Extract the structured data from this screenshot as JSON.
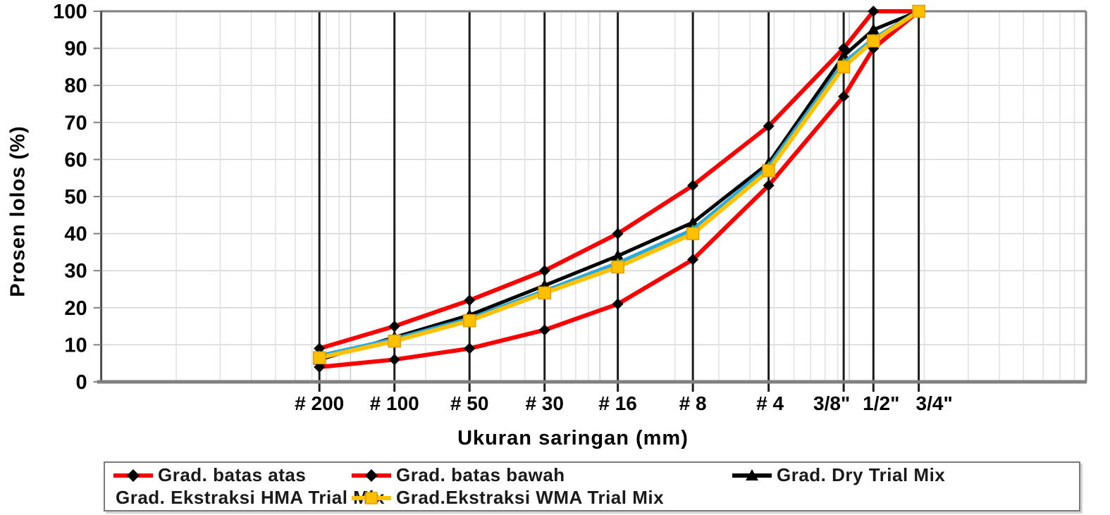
{
  "chart_data": {
    "type": "line",
    "title": "",
    "xlabel": "Ukuran saringan (mm)",
    "ylabel": "Prosen lolos (%)",
    "x_scale": "log",
    "xlim_mm": [
      0.01,
      100
    ],
    "ylim": [
      0,
      100
    ],
    "y_tick_step": 10,
    "y_ticks": [
      0,
      10,
      20,
      30,
      40,
      50,
      60,
      70,
      80,
      90,
      100
    ],
    "grid": true,
    "legend_position": "bottom",
    "categories": [
      "# 200",
      "# 100",
      "# 50",
      "# 30",
      "# 16",
      "# 8",
      "# 4",
      "3/8\"",
      "1/2\"",
      "3/4\""
    ],
    "sieve_sizes_mm": [
      0.075,
      0.15,
      0.3,
      0.6,
      1.18,
      2.36,
      4.75,
      9.5,
      12.5,
      19
    ],
    "series": [
      {
        "name": "Grad. batas atas",
        "line_color": "#FA0000",
        "marker": "diamond",
        "marker_color": "#000000",
        "values": [
          9,
          15,
          22,
          30,
          40,
          53,
          69,
          90,
          100,
          100
        ]
      },
      {
        "name": "Grad. batas bawah",
        "line_color": "#FA0000",
        "marker": "diamond",
        "marker_color": "#000000",
        "values": [
          4,
          6,
          9,
          14,
          21,
          33,
          53,
          77,
          90,
          100
        ]
      },
      {
        "name": "Grad. Dry Trial Mix",
        "line_color": "#000000",
        "marker": "triangle",
        "marker_color": "#000000",
        "values": [
          6,
          12,
          18,
          26,
          34,
          43,
          59,
          88,
          95,
          100
        ]
      },
      {
        "name": "Grad. Ekstraksi HMA Trial Mix",
        "line_color": "#27AAE1",
        "marker": "triangle",
        "marker_color": "#3DB549",
        "values": [
          7,
          11.5,
          17,
          24.5,
          32,
          41,
          58,
          86,
          92.5,
          100
        ]
      },
      {
        "name": "Grad.Ekstraksi WMA Trial Mix",
        "line_color": "#FFC000",
        "marker": "square",
        "marker_color": "#FFC000",
        "values": [
          6.5,
          11,
          16.5,
          24,
          31,
          40,
          57,
          85,
          92,
          100
        ]
      }
    ],
    "colors": {
      "grid_minor": "#E0E0E0",
      "grid_decade": "#C8C8C8",
      "grid_horizontal": "#D4D4D4",
      "sieve_line": "#1C1C1C",
      "plot_border": "#808080",
      "axis_line": "#4D4D4D",
      "text": "#000000"
    }
  }
}
